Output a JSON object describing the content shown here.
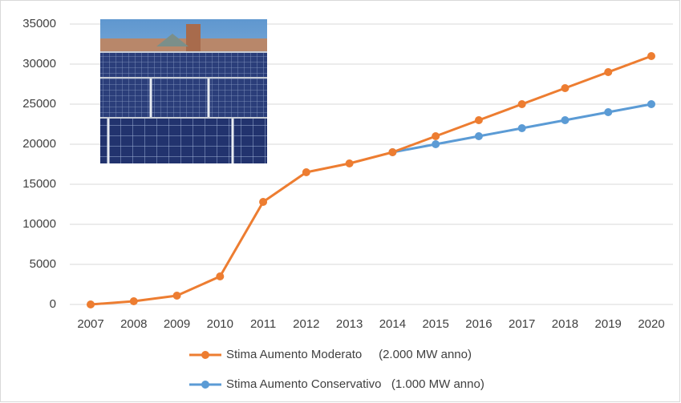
{
  "chart_data": {
    "type": "line",
    "categories": [
      "2007",
      "2008",
      "2009",
      "2010",
      "2011",
      "2012",
      "2013",
      "2014",
      "2015",
      "2016",
      "2017",
      "2018",
      "2019",
      "2020"
    ],
    "series": [
      {
        "name": "Stima Aumento Moderato     (2.000 MW anno)",
        "color": "#ed7d31",
        "values": [
          0,
          400,
          1100,
          3500,
          12800,
          16500,
          17600,
          19000,
          21000,
          23000,
          25000,
          27000,
          29000,
          31000
        ]
      },
      {
        "name": "Stima Aumento Conservativo   (1.000 MW anno)",
        "color": "#5b9bd5",
        "values": [
          null,
          null,
          null,
          null,
          null,
          null,
          null,
          19000,
          20000,
          21000,
          22000,
          23000,
          24000,
          25000
        ]
      }
    ],
    "ylim": [
      0,
      35000
    ],
    "yticks": [
      0,
      5000,
      10000,
      15000,
      20000,
      25000,
      30000,
      35000
    ],
    "grid": true,
    "legend": "bottom"
  }
}
